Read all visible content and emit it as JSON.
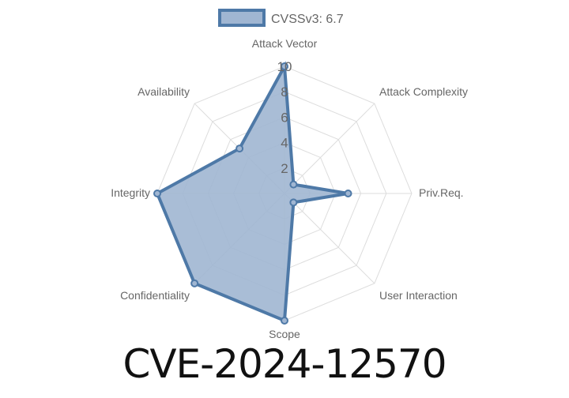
{
  "chart_data": {
    "type": "radar",
    "legend": {
      "label": "CVSSv3: 6.7",
      "position": "top"
    },
    "axes": [
      "Attack Vector",
      "Attack Complexity",
      "Priv.Req.",
      "User Interaction",
      "Scope",
      "Confidentiality",
      "Integrity",
      "Availability"
    ],
    "series": [
      {
        "name": "CVSSv3: 6.7",
        "values": [
          10,
          1,
          5,
          1,
          10,
          10,
          10,
          5
        ]
      }
    ],
    "rlim": [
      0,
      10
    ],
    "ticks": [
      "2",
      "4",
      "6",
      "8",
      "10"
    ],
    "grid": true,
    "colors": {
      "line": "#4e79a7",
      "fill": "#a0b6d2",
      "grid": "#dddddd"
    }
  },
  "title": "CVE-2024-12570"
}
